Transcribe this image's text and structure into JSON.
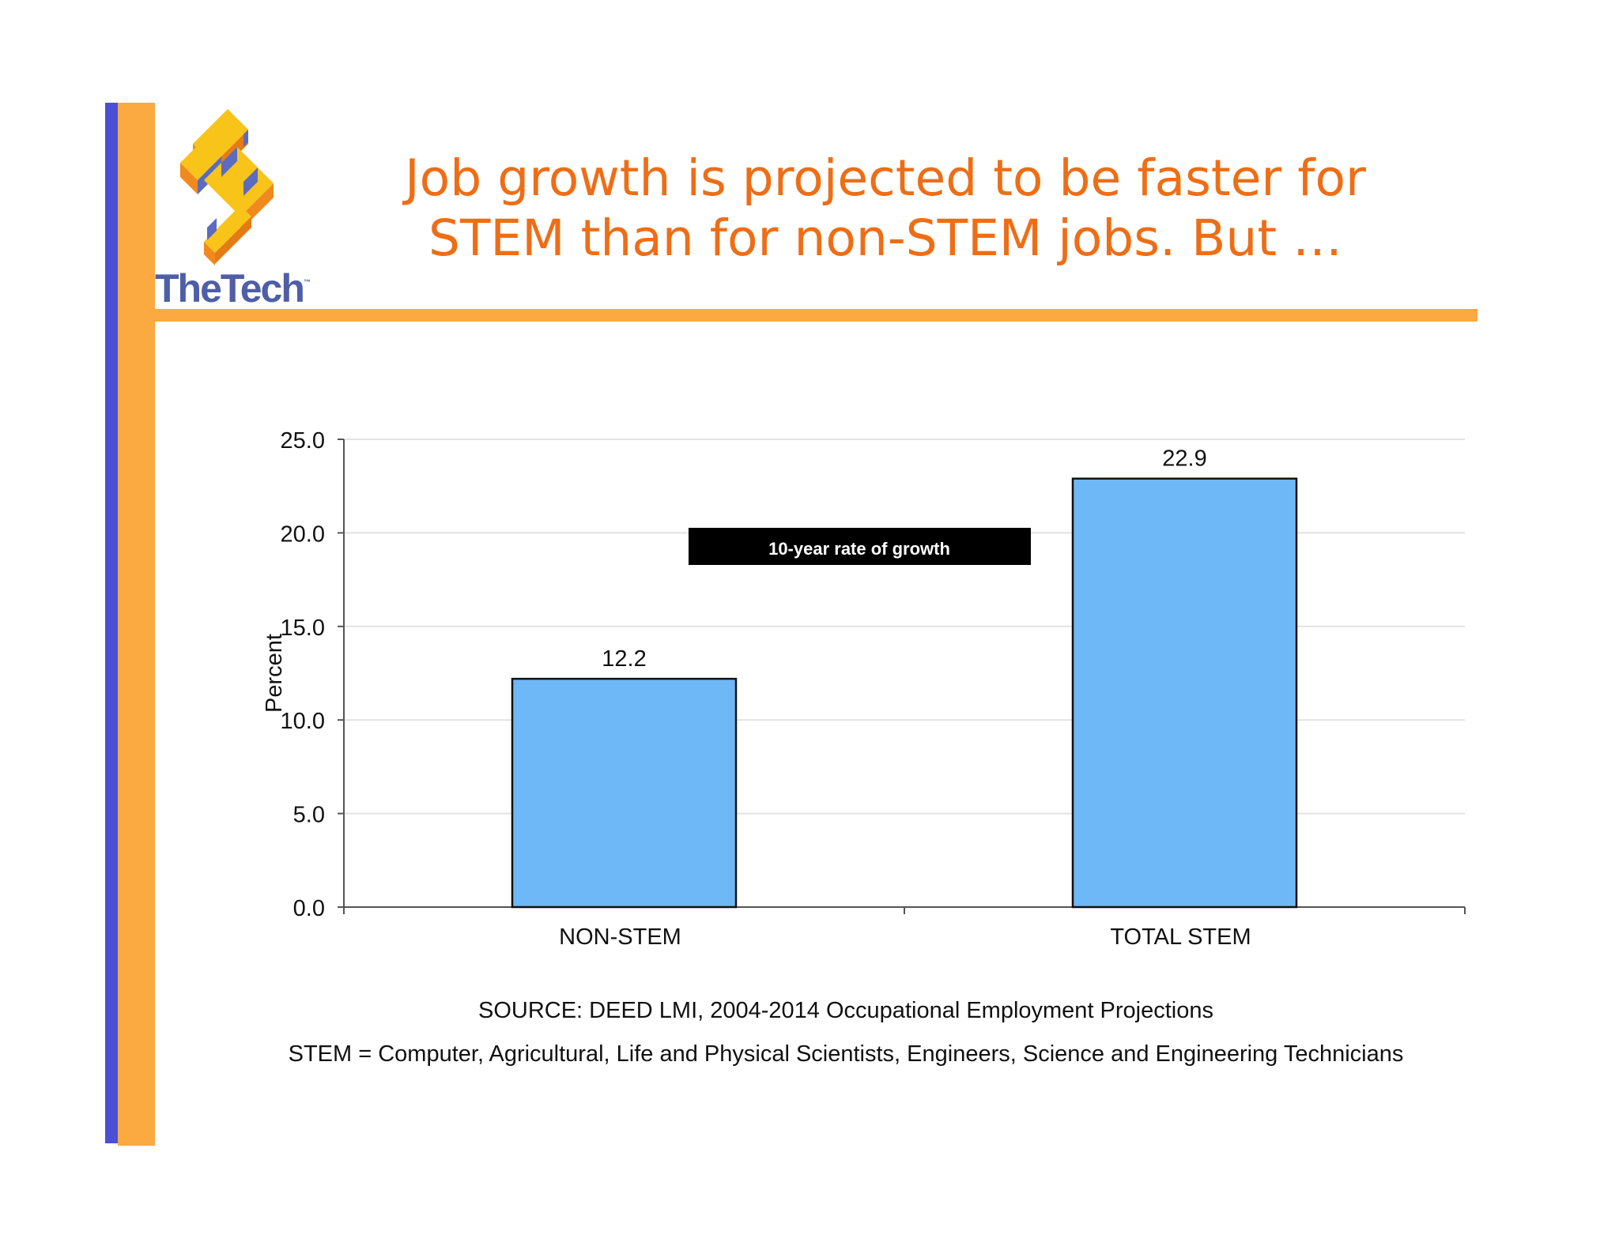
{
  "logo": {
    "brand": "TheTech",
    "trademark": "™"
  },
  "title": {
    "line1": "Job growth is projected to be faster for",
    "line2": "STEM than for non-STEM jobs.  But …"
  },
  "chart_data": {
    "type": "bar",
    "categories": [
      "NON-STEM",
      "TOTAL STEM"
    ],
    "values": [
      12.2,
      22.9
    ],
    "value_labels": [
      "12.2",
      "22.9"
    ],
    "ylabel": "Percent",
    "xlabel": "",
    "ylim": [
      0,
      25
    ],
    "yticks": [
      "0.0",
      "5.0",
      "10.0",
      "15.0",
      "20.0",
      "25.0"
    ],
    "grid": true,
    "legend_box": "10-year rate of growth",
    "bar_color": "#6fb8f8",
    "bar_edge_color": "#111111"
  },
  "footnotes": {
    "source": "SOURCE: DEED LMI, 2004-2014 Occupational Employment Projections",
    "definition": "STEM = Computer, Agricultural, Life and Physical Scientists, Engineers, Science and Engineering Technicians"
  },
  "colors": {
    "accent_orange": "#fba941",
    "accent_blue": "#4a4fd6",
    "title_orange": "#ef6d15",
    "logo_text": "#4f5ea8"
  }
}
